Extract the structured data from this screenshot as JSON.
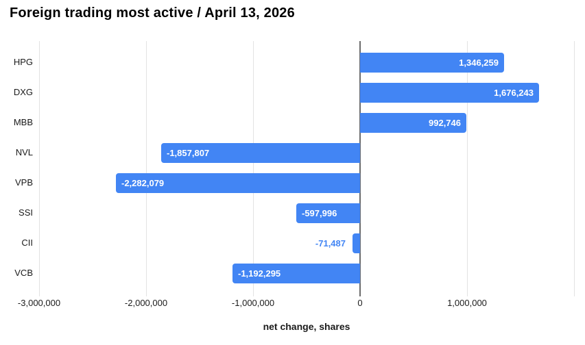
{
  "title": "Foreign trading most active / April 13, 2026",
  "chart_data": {
    "type": "bar",
    "orientation": "horizontal",
    "title": "Foreign trading most active / April 13, 2026",
    "xlabel": "net change, shares",
    "categories": [
      "HPG",
      "DXG",
      "MBB",
      "NVL",
      "VPB",
      "SSI",
      "CII",
      "VCB"
    ],
    "values": [
      1346259,
      1676243,
      992746,
      -1857807,
      -2282079,
      -597996,
      -71487,
      -1192295
    ],
    "value_labels": [
      "1,346,259",
      "1,676,243",
      "992,746",
      "-1,857,807",
      "-2,282,079",
      "-597,996",
      "-71,487",
      "-1,192,295"
    ],
    "xlim": [
      -3000000,
      2000000
    ],
    "x_ticks": [
      {
        "value": -3000000,
        "label": "-3,000,000"
      },
      {
        "value": -2000000,
        "label": "-2,000,000"
      },
      {
        "value": -1000000,
        "label": "-1,000,000"
      },
      {
        "value": 0,
        "label": "0"
      },
      {
        "value": 1000000,
        "label": "1,000,000"
      },
      {
        "value": 2000000,
        "label": ""
      }
    ],
    "grid": "vertical-gridlines",
    "legend": "none",
    "colors": {
      "bar": "#4285f4",
      "value_label_inside": "#ffffff",
      "value_label_outside": "#4285f4",
      "gridline": "#e2e2e2",
      "zero_line": "#6b6b6b",
      "axis_text": "#1a1a1a",
      "title": "#000000",
      "background": "#ffffff"
    }
  }
}
